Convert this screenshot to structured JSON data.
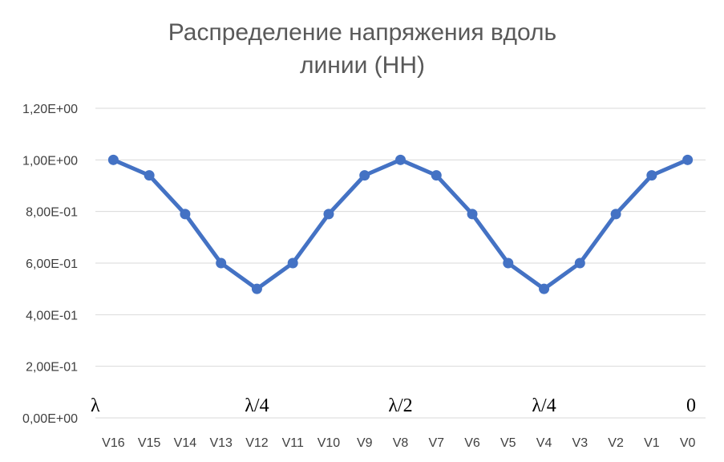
{
  "chart_data": {
    "type": "line",
    "title_lines": [
      "Распределение напряжения вдоль",
      "линии (НН)"
    ],
    "categories": [
      "V16",
      "V15",
      "V14",
      "V13",
      "V12",
      "V11",
      "V10",
      "V9",
      "V8",
      "V7",
      "V6",
      "V5",
      "V4",
      "V3",
      "V2",
      "V1",
      "V0"
    ],
    "series": [
      {
        "values": [
          1.0,
          0.94,
          0.79,
          0.6,
          0.5,
          0.6,
          0.79,
          0.94,
          1.0,
          0.94,
          0.79,
          0.6,
          0.5,
          0.6,
          0.79,
          0.94,
          1.0
        ]
      }
    ],
    "ylim": [
      0,
      1.2
    ],
    "yticks": [
      {
        "value": 0,
        "label": "0,00E+00"
      },
      {
        "value": 0.2,
        "label": "2,00E-01"
      },
      {
        "value": 0.4,
        "label": "4,00E-01"
      },
      {
        "value": 0.6,
        "label": "6,00E-01"
      },
      {
        "value": 0.8,
        "label": "8,00E-01"
      },
      {
        "value": 1.0,
        "label": "1,00E+00"
      },
      {
        "value": 1.2,
        "label": "1,20E+00"
      }
    ],
    "annotations": [
      {
        "text": "λ",
        "category": "V16"
      },
      {
        "text": "λ/4",
        "category": "V12"
      },
      {
        "text": "λ/2",
        "category": "V8"
      },
      {
        "text": "λ/4",
        "category": "V4"
      },
      {
        "text": "0",
        "category": "V0"
      }
    ],
    "grid": true,
    "legend": false,
    "colors": {
      "series": "#4472C4",
      "grid": "#D9D9D9",
      "title": "#595959",
      "tick": "#404040"
    }
  }
}
